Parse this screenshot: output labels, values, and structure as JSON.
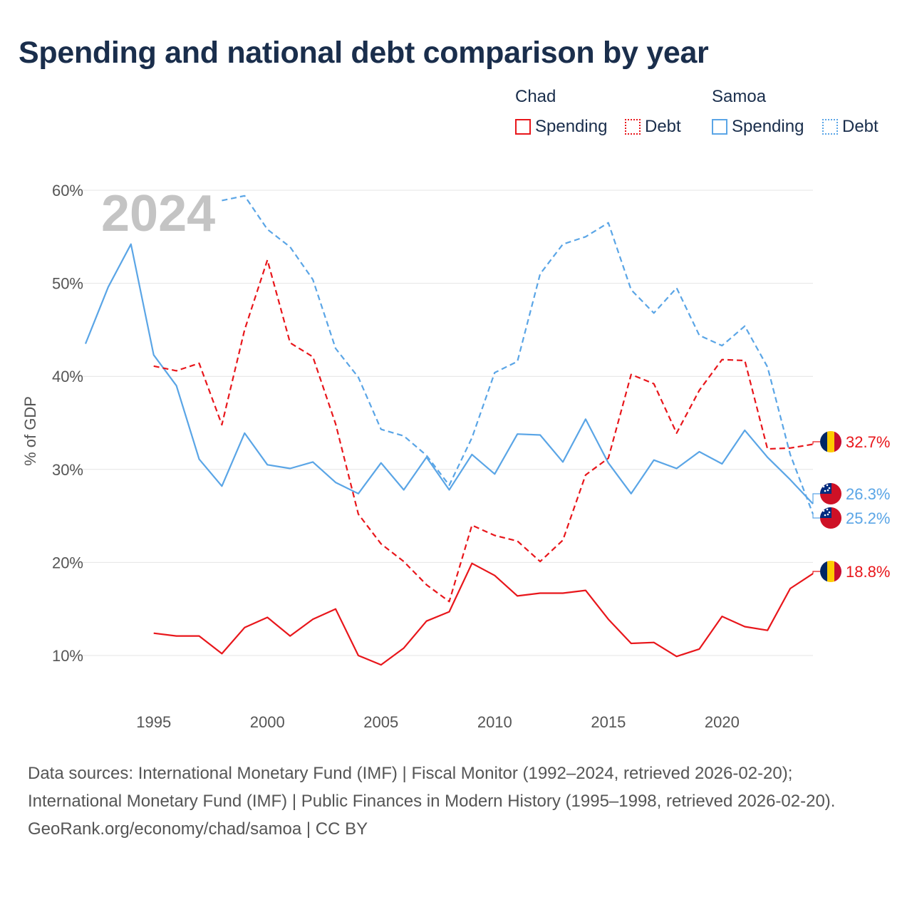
{
  "title": "Spending and national debt comparison by year",
  "legend": {
    "groups": [
      {
        "name": "Chad",
        "items": [
          {
            "label": "Spending",
            "style": "solid"
          },
          {
            "label": "Debt",
            "style": "dotted"
          }
        ],
        "color": "#e8161b"
      },
      {
        "name": "Samoa",
        "items": [
          {
            "label": "Spending",
            "style": "solid"
          },
          {
            "label": "Debt",
            "style": "dotted"
          }
        ],
        "color": "#5aa5e6"
      }
    ]
  },
  "year_watermark": "2024",
  "footer": {
    "sources": "Data sources: International Monetary Fund (IMF) | Fiscal Monitor (1992–2024, retrieved 2026-02-20); International Monetary Fund (IMF) | Public Finances in Modern History (1995–1998, retrieved 2026-02-20).",
    "credit": "GeoRank.org/economy/chad/samoa | CC BY"
  },
  "chart_data": {
    "type": "line",
    "ylabel": "% of GDP",
    "xlabel": "",
    "xlim": [
      1992,
      2024
    ],
    "ylim": [
      5,
      62
    ],
    "x_ticks": [
      1995,
      2000,
      2005,
      2010,
      2015,
      2020
    ],
    "y_ticks": [
      10,
      20,
      30,
      40,
      50,
      60
    ],
    "y_tick_labels": [
      "10%",
      "20%",
      "30%",
      "40%",
      "50%",
      "60%"
    ],
    "grid": true,
    "series": [
      {
        "name": "Chad Spending",
        "country": "Chad",
        "metric": "Spending",
        "color": "#e8161b",
        "dash": "solid",
        "end_label": "18.8%",
        "x": [
          1995,
          1996,
          1997,
          1998,
          1999,
          2000,
          2001,
          2002,
          2003,
          2004,
          2005,
          2006,
          2007,
          2008,
          2009,
          2010,
          2011,
          2012,
          2013,
          2014,
          2015,
          2016,
          2017,
          2018,
          2019,
          2020,
          2021,
          2022,
          2023,
          2024
        ],
        "values": [
          12.4,
          12.1,
          12.1,
          10.2,
          13.0,
          14.1,
          12.1,
          13.9,
          15.0,
          10.0,
          9.0,
          10.8,
          13.7,
          14.7,
          19.9,
          18.6,
          16.4,
          16.7,
          16.7,
          17.0,
          13.9,
          11.3,
          11.4,
          9.9,
          10.7,
          14.2,
          13.1,
          12.7,
          17.2,
          18.8
        ]
      },
      {
        "name": "Chad Debt",
        "country": "Chad",
        "metric": "Debt",
        "color": "#e8161b",
        "dash": "dashed",
        "end_label": "32.7%",
        "x": [
          1995,
          1996,
          1997,
          1998,
          1999,
          2000,
          2001,
          2002,
          2003,
          2004,
          2005,
          2006,
          2007,
          2008,
          2009,
          2010,
          2011,
          2012,
          2013,
          2014,
          2015,
          2016,
          2017,
          2018,
          2019,
          2020,
          2021,
          2022,
          2023,
          2024
        ],
        "values": [
          41.1,
          40.6,
          41.4,
          34.8,
          45.0,
          52.5,
          43.6,
          42.1,
          34.9,
          25.2,
          22.0,
          20.1,
          17.6,
          15.8,
          24.0,
          22.9,
          22.3,
          20.1,
          22.4,
          29.4,
          31.2,
          40.2,
          39.2,
          33.9,
          38.5,
          41.8,
          41.7,
          32.2,
          32.3,
          32.7
        ]
      },
      {
        "name": "Samoa Spending",
        "country": "Samoa",
        "metric": "Spending",
        "color": "#5aa5e6",
        "dash": "solid",
        "end_label": "26.3%",
        "x": [
          1992,
          1993,
          1994,
          1995,
          1996,
          1997,
          1998,
          1999,
          2000,
          2001,
          2002,
          2003,
          2004,
          2005,
          2006,
          2007,
          2008,
          2009,
          2010,
          2011,
          2012,
          2013,
          2014,
          2015,
          2016,
          2017,
          2018,
          2019,
          2020,
          2021,
          2022,
          2023,
          2024
        ],
        "values": [
          43.5,
          49.6,
          54.2,
          42.3,
          39.0,
          31.1,
          28.2,
          33.9,
          30.5,
          30.1,
          30.8,
          28.6,
          27.4,
          30.7,
          27.8,
          31.3,
          27.8,
          31.6,
          29.5,
          33.8,
          33.7,
          30.8,
          35.4,
          30.7,
          27.4,
          31.0,
          30.1,
          31.9,
          30.6,
          34.2,
          31.3,
          28.9,
          26.3
        ]
      },
      {
        "name": "Samoa Debt",
        "country": "Samoa",
        "metric": "Debt",
        "color": "#5aa5e6",
        "dash": "dashed",
        "end_label": "25.2%",
        "x": [
          1998,
          1999,
          2000,
          2001,
          2002,
          2003,
          2004,
          2005,
          2006,
          2007,
          2008,
          2009,
          2010,
          2011,
          2012,
          2013,
          2014,
          2015,
          2016,
          2017,
          2018,
          2019,
          2020,
          2021,
          2022,
          2023,
          2024
        ],
        "values": [
          58.9,
          59.4,
          55.8,
          53.9,
          50.4,
          43.0,
          39.9,
          34.3,
          33.6,
          31.5,
          28.3,
          33.4,
          40.4,
          41.6,
          51.0,
          54.2,
          55.0,
          56.5,
          49.3,
          46.8,
          49.5,
          44.4,
          43.3,
          45.4,
          41.0,
          31.6,
          25.2
        ]
      }
    ]
  }
}
